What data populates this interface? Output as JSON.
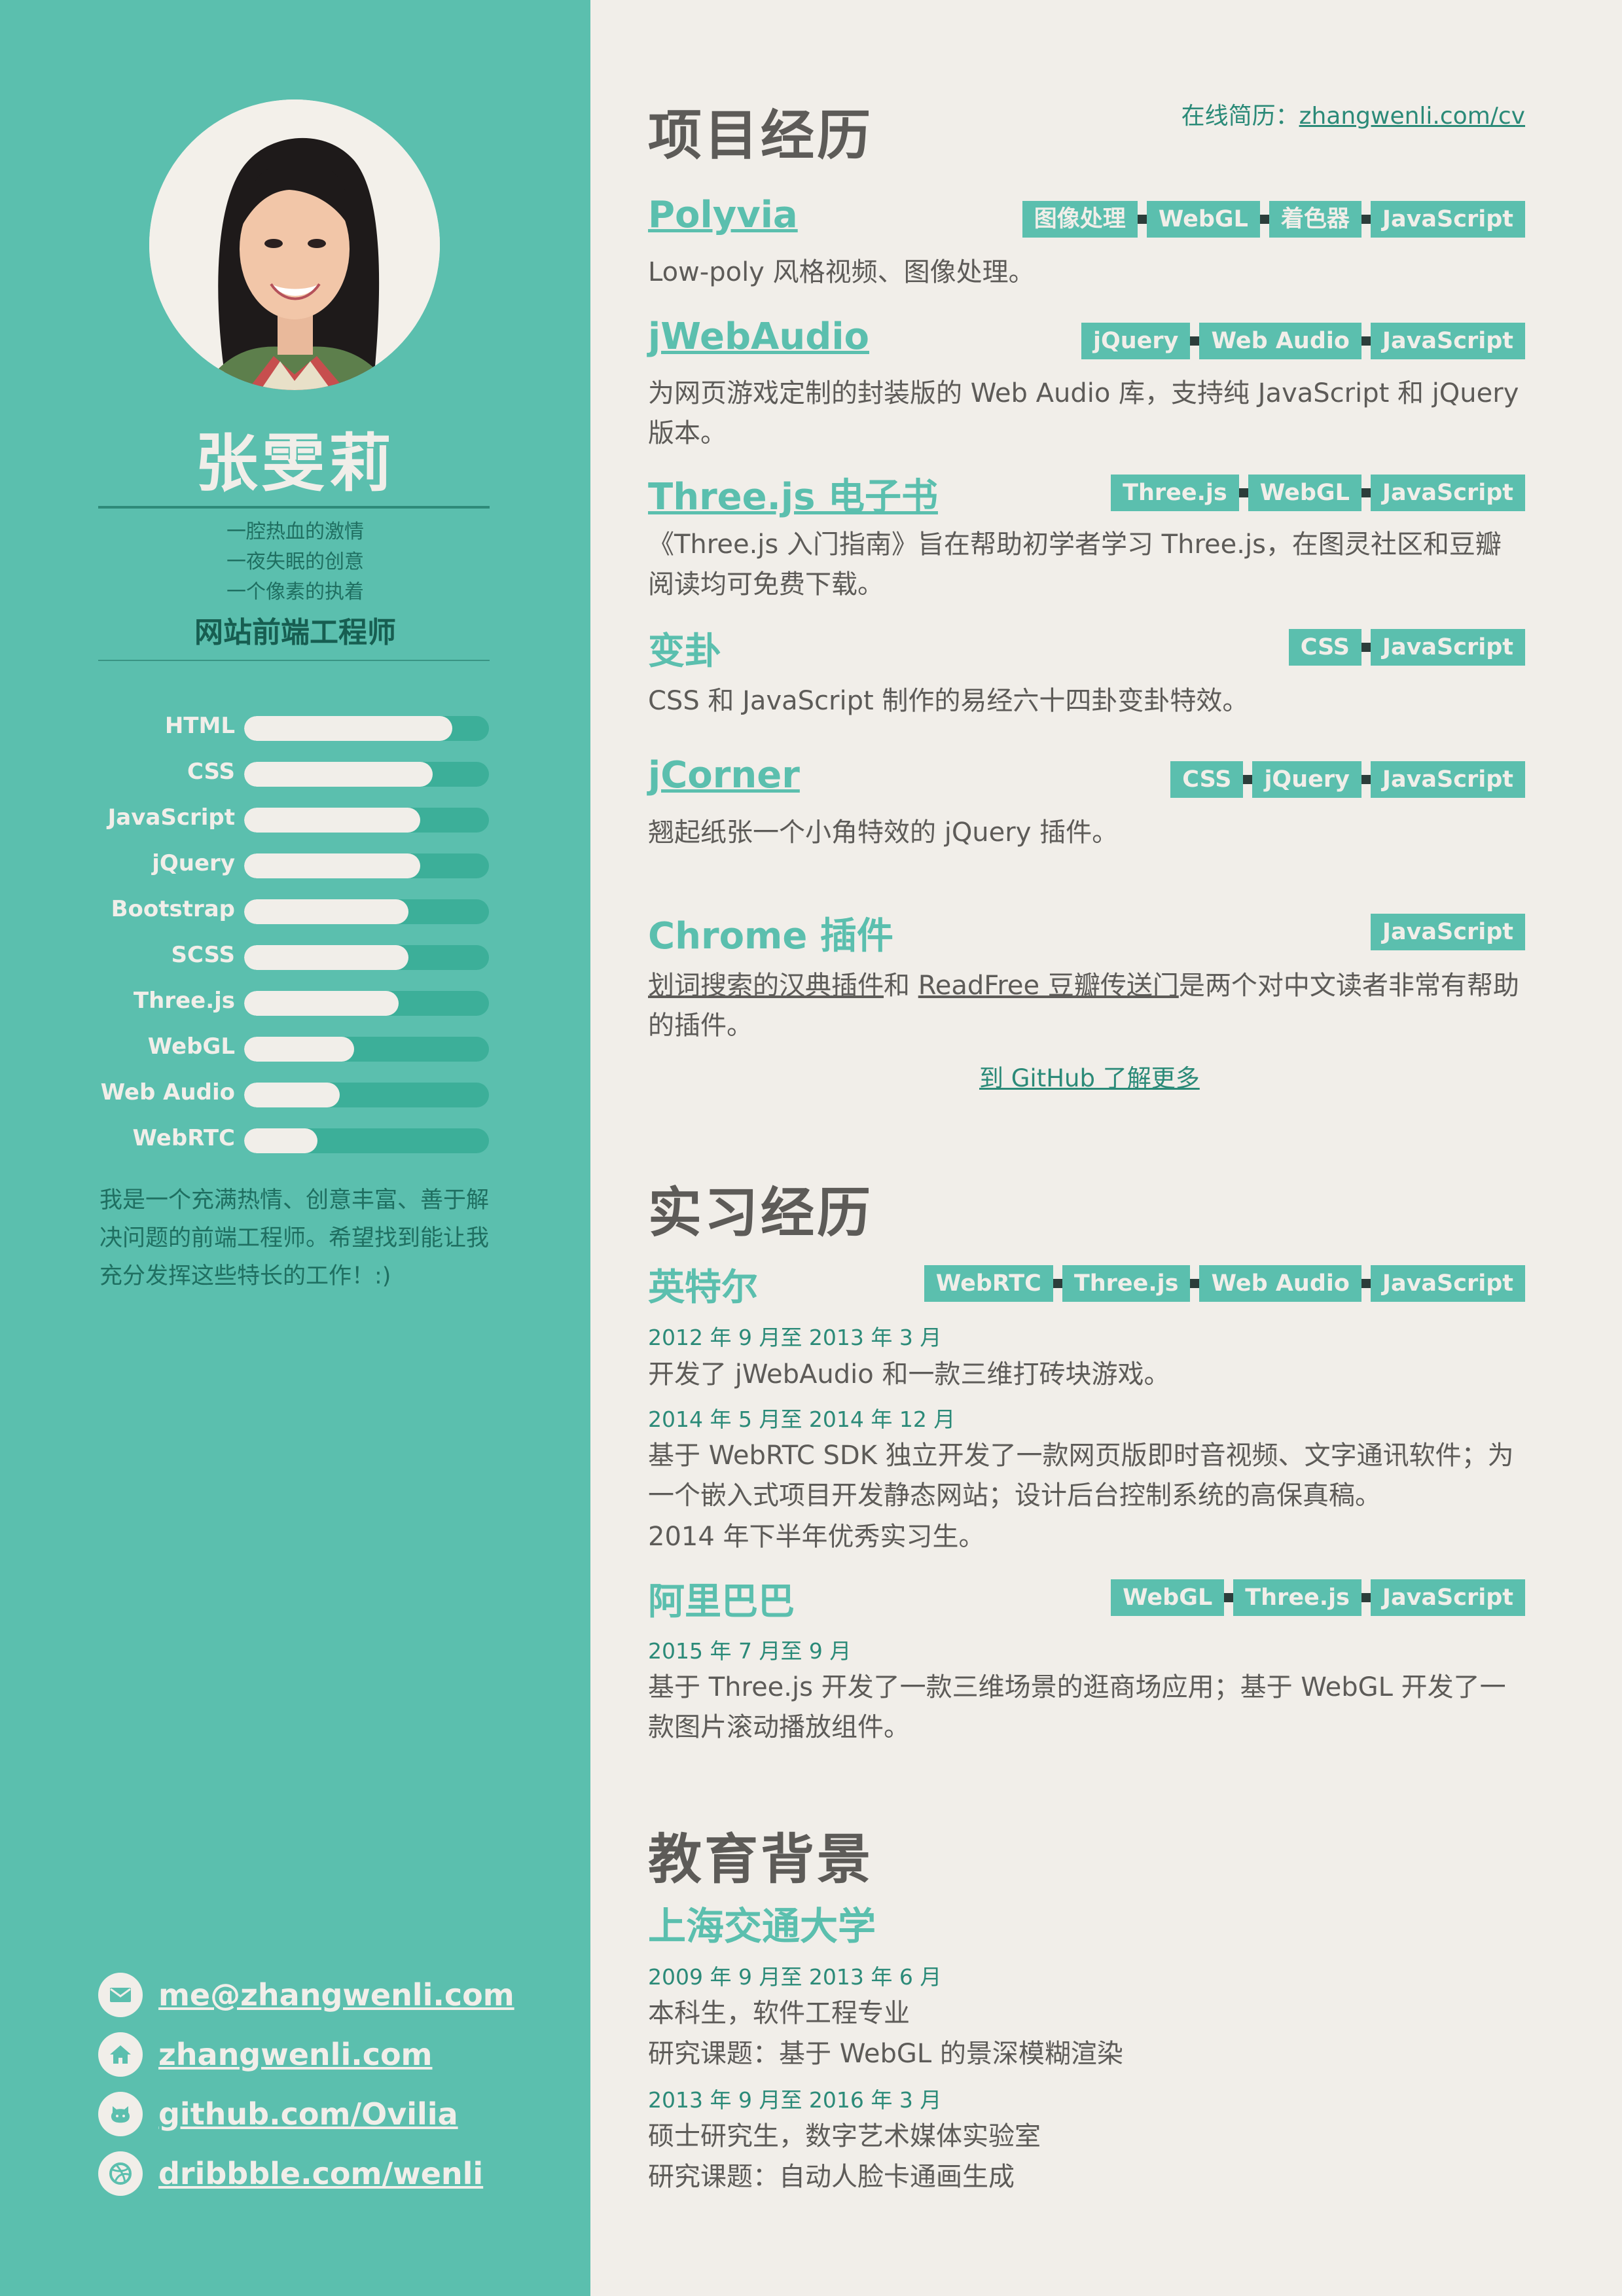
{
  "sidebar": {
    "name": "张雯莉",
    "motto": [
      "一腔热血的激情",
      "一夜失眠的创意",
      "一个像素的执着"
    ],
    "job_title": "网站前端工程师",
    "skills": [
      {
        "label": "HTML",
        "level": 0.85
      },
      {
        "label": "CSS",
        "level": 0.77
      },
      {
        "label": "JavaScript",
        "level": 0.72
      },
      {
        "label": "jQuery",
        "level": 0.72
      },
      {
        "label": "Bootstrap",
        "level": 0.67
      },
      {
        "label": "SCSS",
        "level": 0.67
      },
      {
        "label": "Three.js",
        "level": 0.63
      },
      {
        "label": "WebGL",
        "level": 0.45
      },
      {
        "label": "Web Audio",
        "level": 0.39
      },
      {
        "label": "WebRTC",
        "level": 0.3
      }
    ],
    "about": "我是一个充满热情、创意丰富、善于解决问题的前端工程师。希望找到能让我充分发挥这些特长的工作！:)",
    "contacts": [
      {
        "icon": "mail-icon",
        "text": "me@zhangwenli.com"
      },
      {
        "icon": "home-icon",
        "text": "zhangwenli.com"
      },
      {
        "icon": "github-icon",
        "text": "github.com/Ovilia"
      },
      {
        "icon": "dribbble-icon",
        "text": "dribbble.com/wenli"
      }
    ]
  },
  "online_cv": {
    "label": "在线简历：",
    "link": "zhangwenli.com/cv"
  },
  "projects": {
    "title": "项目经历",
    "items": [
      {
        "title": "Polyvia",
        "tags": [
          "图像处理",
          "WebGL",
          "着色器",
          "JavaScript"
        ],
        "desc": "Low-poly 风格视频、图像处理。"
      },
      {
        "title": "jWebAudio",
        "tags": [
          "jQuery",
          "Web Audio",
          "JavaScript"
        ],
        "desc": "为网页游戏定制的封装版的 Web Audio 库，支持纯 JavaScript 和 jQuery 版本。"
      },
      {
        "title": "Three.js 电子书",
        "tags": [
          "Three.js",
          "WebGL",
          "JavaScript"
        ],
        "desc": "《Three.js 入门指南》旨在帮助初学者学习 Three.js，在图灵社区和豆瓣阅读均可免费下载。"
      },
      {
        "title": "变卦",
        "tags": [
          "CSS",
          "JavaScript"
        ],
        "desc": "CSS 和 JavaScript 制作的易经六十四卦变卦特效。"
      },
      {
        "title": "jCorner",
        "tags": [
          "CSS",
          "jQuery",
          "JavaScript"
        ],
        "desc": "翘起纸张一个小角特效的 jQuery 插件。"
      },
      {
        "title": "Chrome 插件",
        "tags": [
          "JavaScript"
        ],
        "desc_link1": "划词搜索的汉典插件",
        "desc_mid": "和 ",
        "desc_link2": "ReadFree 豆瓣传送门",
        "desc_end": "是两个对中文读者非常有帮助的插件。"
      }
    ],
    "more": "到 GitHub 了解更多"
  },
  "internships": {
    "title": "实习经历",
    "intel": {
      "company": "英特尔",
      "tags": [
        "WebRTC",
        "Three.js",
        "Web Audio",
        "JavaScript"
      ],
      "date1": "2012 年 9 月至 2013 年 3 月",
      "desc1": "开发了 jWebAudio 和一款三维打砖块游戏。",
      "date2": "2014 年 5 月至 2014 年 12 月",
      "desc2": "基于 WebRTC SDK 独立开发了一款网页版即时音视频、文字通讯软件；为一个嵌入式项目开发静态网站；设计后台控制系统的高保真稿。",
      "desc3": "2014 年下半年优秀实习生。"
    },
    "alibaba": {
      "company": "阿里巴巴",
      "tags": [
        "WebGL",
        "Three.js",
        "JavaScript"
      ],
      "date": "2015 年 7 月至 9 月",
      "desc": "基于 Three.js 开发了一款三维场景的逛商场应用；基于 WebGL 开发了一款图片滚动播放组件。"
    }
  },
  "education": {
    "title": "教育背景",
    "school": "上海交通大学",
    "date1": "2009 年 9 月至 2013 年 6 月",
    "line1": "本科生，软件工程专业",
    "line2": "研究课题：基于 WebGL 的景深模糊渲染",
    "date2": "2013 年 9 月至 2016 年 3 月",
    "line3": "硕士研究生，数字艺术媒体实验室",
    "line4": "研究课题：自动人脸卡通画生成"
  },
  "colors": {
    "accent": "#5bbfae",
    "dark_accent": "#2b8a78",
    "paper": "#f1eee9",
    "text": "#5d5b58"
  }
}
